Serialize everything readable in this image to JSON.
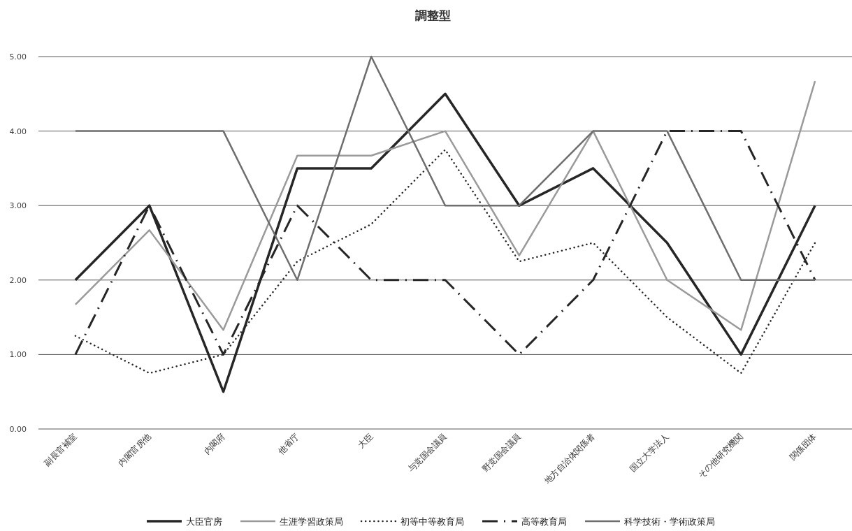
{
  "chart_data": {
    "type": "line",
    "title": "調整型",
    "categories": [
      "副長官補室",
      "内閣官房他",
      "内閣府",
      "他省庁",
      "大臣",
      "与党国会議員",
      "野党国会議員",
      "地方自治体関係者",
      "国立大学法人",
      "その他研究機関",
      "関係団体"
    ],
    "series": [
      {
        "name": "大臣官房",
        "color": "#262626",
        "line_style": "solid",
        "values": [
          2,
          3,
          0.5,
          3.5,
          3.5,
          4.5,
          3,
          3.5,
          2.5,
          1,
          3
        ]
      },
      {
        "name": "生涯学習政策局",
        "color": "#9a9a9a",
        "line_style": "solid",
        "values": [
          1.67,
          2.67,
          1.33,
          3.67,
          3.67,
          4,
          2.33,
          4,
          2,
          1.33,
          4.67
        ]
      },
      {
        "name": "初等中等教育局",
        "color": "#262626",
        "line_style": "dotted",
        "values": [
          1.25,
          0.75,
          1,
          2.25,
          2.75,
          3.75,
          2.25,
          2.5,
          1.5,
          0.75,
          2.5
        ]
      },
      {
        "name": "高等教育局",
        "color": "#262626",
        "line_style": "dashed",
        "values": [
          1,
          3,
          1,
          3,
          2,
          2,
          1,
          2,
          4,
          4,
          2
        ]
      },
      {
        "name": "科学技術・学術政策局",
        "color": "#6e6e6e",
        "line_style": "solid",
        "values": [
          4,
          4,
          4,
          2,
          5,
          3,
          3,
          4,
          4,
          2,
          2
        ]
      }
    ],
    "ylim": [
      0,
      5
    ],
    "yticks": [
      {
        "value": 0,
        "label": "0.00"
      },
      {
        "value": 1,
        "label": "1.00"
      },
      {
        "value": 2,
        "label": "2.00"
      },
      {
        "value": 3,
        "label": "3.00"
      },
      {
        "value": 4,
        "label": "4.00"
      },
      {
        "value": 5,
        "label": "5.00"
      }
    ],
    "grid": "y",
    "legend": "bottom",
    "marker": "none"
  }
}
